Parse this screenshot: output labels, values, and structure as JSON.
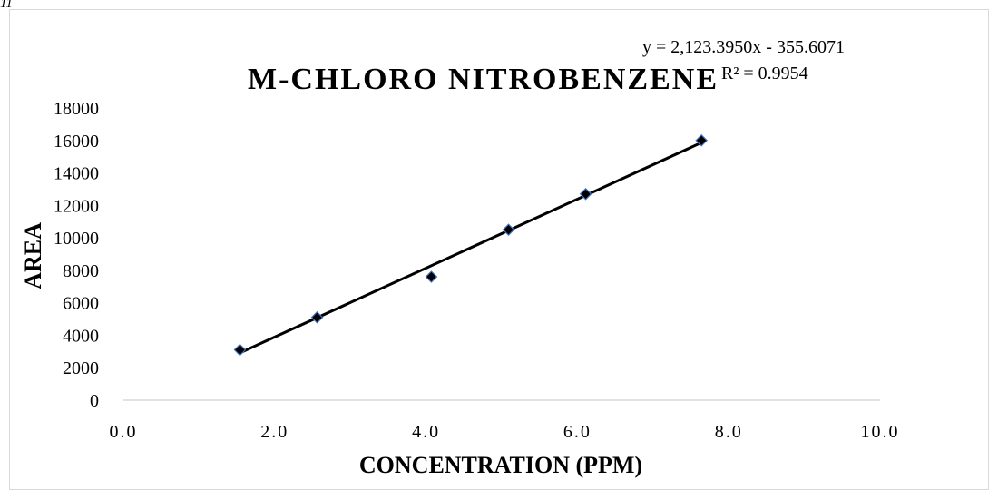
{
  "corner_text": "11",
  "chart_data": {
    "type": "scatter",
    "title": "M-CHLORO NITROBENZENE",
    "xlabel": "CONCENTRATION (PPM)",
    "ylabel": "AREA",
    "xlim": [
      0,
      10
    ],
    "ylim": [
      0,
      18000
    ],
    "xticks": [
      "0.0",
      "2.0",
      "4.0",
      "6.0",
      "8.0",
      "10.0"
    ],
    "yticks": [
      "0",
      "2000",
      "4000",
      "6000",
      "8000",
      "10000",
      "12000",
      "14000",
      "16000",
      "18000"
    ],
    "points": [
      {
        "x": 1.54,
        "y": 3100
      },
      {
        "x": 2.56,
        "y": 5100
      },
      {
        "x": 4.07,
        "y": 7600
      },
      {
        "x": 5.09,
        "y": 10500
      },
      {
        "x": 6.11,
        "y": 12700
      },
      {
        "x": 7.64,
        "y": 16000
      }
    ],
    "trendline": {
      "slope": 2123.395,
      "intercept": -355.6071,
      "x_start": 1.54,
      "x_end": 7.64
    },
    "equation_text": "y = 2,123.3950x - 355.6071",
    "r2_text": "R² = 0.9954",
    "marker_color": "#000000",
    "marker_outline_color": "#4472c4",
    "line_color": "#000000",
    "axis_color": "#d9d9d9",
    "grid": false,
    "legend": "none"
  }
}
